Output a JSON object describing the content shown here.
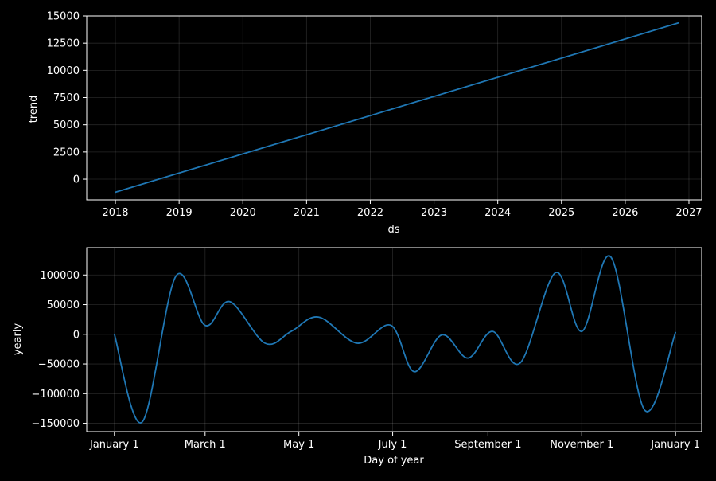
{
  "chart_data": [
    {
      "type": "line",
      "xlabel": "ds",
      "ylabel": "trend",
      "x_ticks": [
        "2018",
        "2019",
        "2020",
        "2021",
        "2022",
        "2023",
        "2024",
        "2025",
        "2026",
        "2027"
      ],
      "y_ticks": [
        "0",
        "2500",
        "5000",
        "7500",
        "10000",
        "12500",
        "15000"
      ],
      "xlim": [
        2017.55,
        2027.2
      ],
      "ylim": [
        -1900,
        15000
      ],
      "grid": true,
      "line_color": "#1f77b4",
      "series": [
        {
          "x": [
            2018.0,
            2026.83
          ],
          "y": [
            -1200,
            14350
          ]
        }
      ]
    },
    {
      "type": "line",
      "xlabel": "Day of year",
      "ylabel": "yearly",
      "x_ticks": [
        {
          "label": "January 1",
          "day": 0
        },
        {
          "label": "March 1",
          "day": 59
        },
        {
          "label": "May 1",
          "day": 120
        },
        {
          "label": "July 1",
          "day": 181
        },
        {
          "label": "September 1",
          "day": 243
        },
        {
          "label": "November 1",
          "day": 304
        },
        {
          "label": "January 1",
          "day": 365
        }
      ],
      "y_ticks": [
        "−150000",
        "−100000",
        "−50000",
        "0",
        "50000",
        "100000"
      ],
      "y_tick_values": [
        -150000,
        -100000,
        -50000,
        0,
        50000,
        100000
      ],
      "xlim": [
        -18,
        382
      ],
      "ylim": [
        -164000,
        146000
      ],
      "grid": true,
      "line_color": "#1f77b4",
      "series": [
        {
          "x": [
            0,
            18,
            40,
            59,
            75,
            98,
            115,
            133,
            158,
            180,
            195,
            213,
            230,
            246,
            264,
            287,
            304,
            323,
            345,
            365
          ],
          "y": [
            0,
            -148000,
            98000,
            15000,
            55000,
            -15000,
            5000,
            29000,
            -15000,
            15000,
            -63000,
            -1000,
            -40000,
            5000,
            -48000,
            104000,
            5000,
            130000,
            -128000,
            3000
          ]
        }
      ]
    }
  ]
}
